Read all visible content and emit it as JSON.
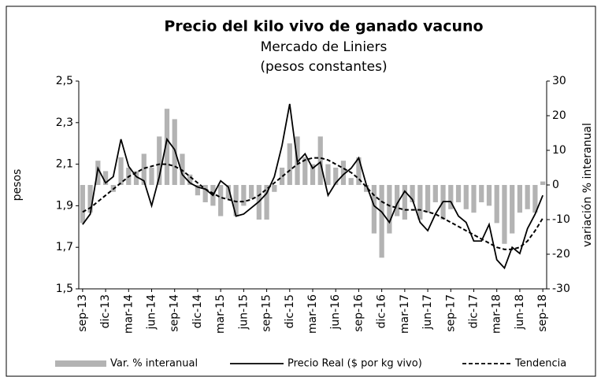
{
  "chart_data": {
    "type": "combo",
    "title": "Precio del kilo vivo de ganado vacuno",
    "subtitle": [
      "Mercado de Liniers",
      "(pesos constantes)"
    ],
    "ylabel": "pesos",
    "y2label": "variación % interanual",
    "categories": [
      "sep-13",
      null,
      null,
      "dic-13",
      null,
      null,
      "mar-14",
      null,
      null,
      "jun-14",
      null,
      null,
      "sep-14",
      null,
      null,
      "dic-14",
      null,
      null,
      "mar-15",
      null,
      null,
      "jun-15",
      null,
      null,
      "sep-15",
      null,
      null,
      "dic-15",
      null,
      null,
      "mar-16",
      null,
      null,
      "jun-16",
      null,
      null,
      "sep-16",
      null,
      null,
      "dic-16",
      null,
      null,
      "mar-17",
      null,
      null,
      "jun-17",
      null,
      null,
      "sep-17",
      null,
      null,
      "dic-17",
      null,
      null,
      "mar-18",
      null,
      null,
      "jun-18",
      null,
      null,
      "sep-18"
    ],
    "ylim": [
      1.5,
      2.5
    ],
    "yticks": [
      {
        "value": 1.5,
        "label": "1,5"
      },
      {
        "value": 1.7,
        "label": "1,7"
      },
      {
        "value": 1.9,
        "label": "1,9"
      },
      {
        "value": 2.1,
        "label": "2,1"
      },
      {
        "value": 2.3,
        "label": "2,3"
      },
      {
        "value": 2.5,
        "label": "2,5"
      }
    ],
    "y2lim": [
      -30,
      30
    ],
    "y2ticks": [
      -30,
      -20,
      -10,
      0,
      10,
      20,
      30
    ],
    "grid": false,
    "legend": "bottom",
    "series": [
      {
        "name": "Var. % interanual",
        "type": "bar",
        "axis": "y2",
        "color": "#b3b3b3",
        "values": [
          -11,
          -8,
          7,
          4,
          -2,
          8,
          5,
          4,
          9,
          5,
          14,
          22,
          19,
          9,
          3,
          -3,
          -5,
          -6,
          -9,
          -4,
          -9,
          -6,
          -4,
          -10,
          -10,
          -2,
          5,
          12,
          14,
          8,
          6,
          14,
          6,
          5,
          7,
          2,
          8,
          -2,
          -14,
          -21,
          -14,
          -9,
          -10,
          -5,
          -10,
          -8,
          -5,
          -10,
          -7,
          -5,
          -7,
          -8,
          -5,
          -6,
          -11,
          -17,
          -14,
          -8,
          -7,
          -8,
          1
        ]
      },
      {
        "name": "Precio Real ($ por kg vivo)",
        "type": "line",
        "color": "#000000",
        "dashed": false,
        "values": [
          1.81,
          1.86,
          2.08,
          2.01,
          2.04,
          2.22,
          2.09,
          2.04,
          2.02,
          1.9,
          2.04,
          2.22,
          2.17,
          2.05,
          2.01,
          1.99,
          1.98,
          1.95,
          2.02,
          1.99,
          1.85,
          1.86,
          1.89,
          1.92,
          1.96,
          2.04,
          2.19,
          2.39,
          2.11,
          2.15,
          2.08,
          2.11,
          1.95,
          2.01,
          2.05,
          2.08,
          2.13,
          2.0,
          1.9,
          1.87,
          1.82,
          1.91,
          1.97,
          1.93,
          1.82,
          1.78,
          1.86,
          1.92,
          1.92,
          1.85,
          1.82,
          1.73,
          1.73,
          1.81,
          1.64,
          1.6,
          1.7,
          1.67,
          1.79,
          1.86,
          1.95
        ]
      },
      {
        "name": "Tendencia",
        "type": "line",
        "color": "#000000",
        "dashed": true,
        "values": [
          1.87,
          1.89,
          1.92,
          1.95,
          1.98,
          2.01,
          2.04,
          2.06,
          2.08,
          2.09,
          2.1,
          2.1,
          2.09,
          2.07,
          2.04,
          2.01,
          1.98,
          1.96,
          1.94,
          1.93,
          1.92,
          1.92,
          1.93,
          1.95,
          1.98,
          2.01,
          2.04,
          2.07,
          2.1,
          2.12,
          2.13,
          2.13,
          2.12,
          2.1,
          2.08,
          2.06,
          2.03,
          1.99,
          1.95,
          1.92,
          1.9,
          1.89,
          1.88,
          1.88,
          1.88,
          1.87,
          1.86,
          1.84,
          1.82,
          1.8,
          1.78,
          1.76,
          1.74,
          1.72,
          1.7,
          1.69,
          1.69,
          1.7,
          1.73,
          1.78,
          1.84
        ]
      }
    ]
  }
}
